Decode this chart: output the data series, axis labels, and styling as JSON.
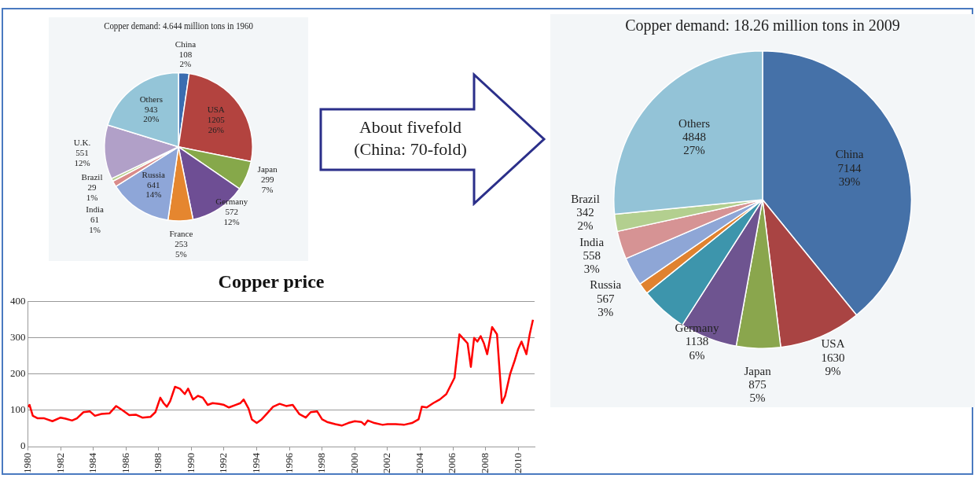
{
  "chart_data": [
    {
      "type": "pie",
      "title": "Copper demand: 4.644 million tons in 1960",
      "categories": [
        "China",
        "USA",
        "Japan",
        "Germany",
        "France",
        "Russia",
        "India",
        "Brazil",
        "U.K.",
        "Others"
      ],
      "values": [
        108,
        1205,
        299,
        572,
        253,
        641,
        61,
        29,
        551,
        943
      ],
      "colors": [
        "#3b6db0",
        "#b3433f",
        "#86a84a",
        "#6e4e94",
        "#e5862f",
        "#8ea6d8",
        "#d98b8a",
        "#b6d08e",
        "#b1a0c8",
        "#94c5d8"
      ],
      "value_labels": [
        "108\n2%",
        "1205\n26%",
        "299\n7%",
        "572\n12%",
        "253\n5%",
        "641\n14%",
        "61\n1%",
        "29\n1%",
        "551\n12%",
        "943\n20%"
      ]
    },
    {
      "type": "pie",
      "title": "Copper demand: 18.26 million tons in 2009",
      "categories": [
        "China",
        "USA",
        "Japan",
        "Germany",
        null,
        null,
        "Russia",
        "India",
        "Brazil",
        "Others"
      ],
      "values": [
        7144,
        1630,
        875,
        1138,
        935,
        223,
        567,
        558,
        342,
        4848
      ],
      "colors": [
        "#4571a8",
        "#a94443",
        "#8aa64d",
        "#6e5490",
        "#3d95ac",
        "#e0822f",
        "#8ea6d6",
        "#d69394",
        "#b3cf8f",
        "#93c3d7"
      ],
      "value_labels": [
        "7144\n39%",
        "1630\n9%",
        "875\n5%",
        "1138\n6%",
        null,
        null,
        "567\n3%",
        "558\n3%",
        "342\n2%",
        "4848\n27%"
      ],
      "annotations": [
        "About fivefold\n(China: 70-fold)"
      ]
    },
    {
      "type": "line",
      "title": "Copper price",
      "xlim": [
        1980,
        2011
      ],
      "xticks": [
        1980,
        1982,
        1984,
        1986,
        1988,
        1990,
        1992,
        1994,
        1996,
        1998,
        2000,
        2002,
        2004,
        2006,
        2008,
        2010
      ],
      "ylim": [
        0,
        400
      ],
      "yticks": [
        0,
        100,
        200,
        300,
        400
      ],
      "grid": "y",
      "marker": "none",
      "series": [
        {
          "color": "#ff0000",
          "x": [
            1980.0,
            1980.1,
            1980.3,
            1980.6,
            1981,
            1981.5,
            1982,
            1982.3,
            1982.7,
            1983,
            1983.4,
            1983.8,
            1984.1,
            1984.5,
            1985,
            1985.4,
            1985.8,
            1986.2,
            1986.6,
            1987,
            1987.5,
            1987.8,
            1988.1,
            1988.3,
            1988.5,
            1988.7,
            1989,
            1989.3,
            1989.6,
            1989.8,
            1990.1,
            1990.4,
            1990.7,
            1991,
            1991.3,
            1991.7,
            1992,
            1992.3,
            1992.7,
            1993,
            1993.2,
            1993.5,
            1993.7,
            1994,
            1994.3,
            1994.6,
            1995,
            1995.4,
            1995.8,
            1996.2,
            1996.6,
            1997,
            1997.3,
            1997.7,
            1998,
            1998.3,
            1998.8,
            1999.2,
            1999.6,
            2000,
            2000.4,
            2000.6,
            2000.8,
            2001.2,
            2001.7,
            2002,
            2002.5,
            2003,
            2003.5,
            2003.9,
            2004.1,
            2004.4,
            2004.8,
            2005.2,
            2005.6,
            2006.1,
            2006.4,
            2006.7,
            2006.9,
            2007.1,
            2007.3,
            2007.5,
            2007.7,
            2007.9,
            2008.1,
            2008.4,
            2008.7,
            2009.0,
            2009.2,
            2009.5,
            2009.8,
            2010.0,
            2010.2,
            2010.5,
            2010.7,
            2010.9
          ],
          "values": [
            110,
            115,
            85,
            78,
            78,
            70,
            80,
            77,
            72,
            78,
            95,
            97,
            85,
            90,
            92,
            112,
            100,
            87,
            88,
            80,
            82,
            95,
            135,
            120,
            110,
            125,
            165,
            160,
            145,
            160,
            130,
            140,
            135,
            115,
            120,
            118,
            115,
            108,
            115,
            120,
            130,
            105,
            75,
            65,
            75,
            90,
            110,
            118,
            112,
            115,
            90,
            80,
            95,
            97,
            75,
            68,
            62,
            58,
            65,
            70,
            68,
            60,
            72,
            65,
            60,
            62,
            62,
            60,
            65,
            75,
            110,
            108,
            120,
            130,
            145,
            190,
            310,
            295,
            285,
            220,
            300,
            290,
            305,
            285,
            255,
            330,
            310,
            120,
            140,
            200,
            240,
            270,
            290,
            255,
            310,
            350
          ]
        }
      ]
    }
  ]
}
